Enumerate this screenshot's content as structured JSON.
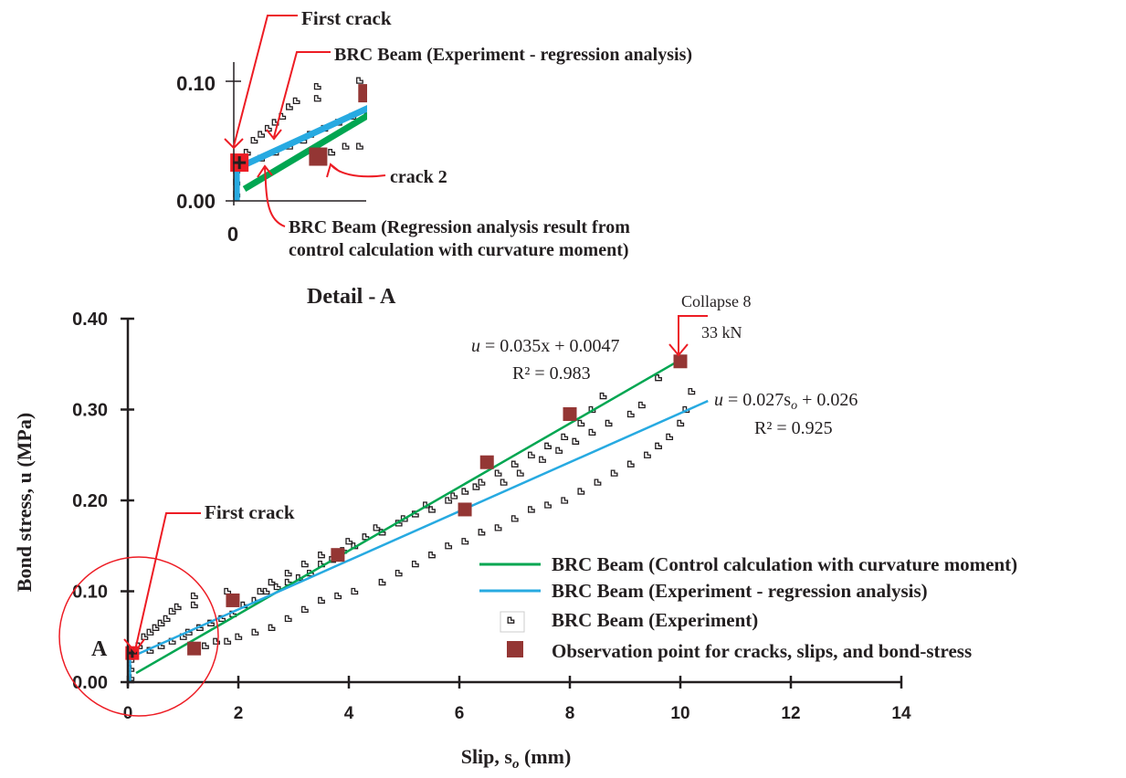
{
  "chart_data": {
    "type": "scatter",
    "xlabel": "Slip, s",
    "xlabel_sub": "o",
    "xlabel_unit": " (mm)",
    "ylabel": "Bond stress, u (MPa)",
    "xlim": [
      0,
      14
    ],
    "ylim": [
      0,
      0.4
    ],
    "xticks": [
      "0",
      "2",
      "4",
      "6",
      "8",
      "10",
      "12",
      "14"
    ],
    "yticks": [
      "0.00",
      "0.10",
      "0.20",
      "0.30",
      "0.40"
    ],
    "grid": false,
    "legend_placement": "bottom-right",
    "colors": {
      "control": "#00a651",
      "regression": "#27aae1",
      "experiment": "#231f20",
      "observation": "#943634",
      "annotation": "#ed1c24"
    },
    "series": [
      {
        "name": "BRC Beam (Control calculation with curvature moment)",
        "type": "line",
        "slope": 0.035,
        "intercept": 0.0047,
        "x_range": [
          0.15,
          10
        ]
      },
      {
        "name": "BRC Beam (Experiment - regression analysis)",
        "type": "line",
        "slope": 0.027,
        "intercept": 0.026,
        "x_range": [
          0.05,
          10.5
        ]
      },
      {
        "name": "BRC Beam (Experiment)",
        "type": "scatter",
        "points": [
          [
            0.05,
            0.005
          ],
          [
            0.05,
            0.015
          ],
          [
            0.05,
            0.025
          ],
          [
            0.1,
            0.03
          ],
          [
            0.2,
            0.04
          ],
          [
            0.3,
            0.05
          ],
          [
            0.4,
            0.055
          ],
          [
            0.5,
            0.06
          ],
          [
            0.6,
            0.065
          ],
          [
            0.7,
            0.07
          ],
          [
            0.8,
            0.078
          ],
          [
            0.9,
            0.083
          ],
          [
            1.2,
            0.085
          ],
          [
            1.2,
            0.095
          ],
          [
            1.8,
            0.1
          ],
          [
            0.4,
            0.035
          ],
          [
            0.6,
            0.04
          ],
          [
            0.8,
            0.045
          ],
          [
            1.0,
            0.05
          ],
          [
            1.1,
            0.055
          ],
          [
            1.3,
            0.06
          ],
          [
            1.5,
            0.065
          ],
          [
            1.7,
            0.07
          ],
          [
            1.9,
            0.075
          ],
          [
            2.1,
            0.085
          ],
          [
            2.3,
            0.09
          ],
          [
            2.5,
            0.1
          ],
          [
            2.7,
            0.105
          ],
          [
            2.9,
            0.11
          ],
          [
            3.1,
            0.115
          ],
          [
            3.3,
            0.12
          ],
          [
            3.5,
            0.13
          ],
          [
            3.7,
            0.135
          ],
          [
            3.9,
            0.145
          ],
          [
            4.1,
            0.15
          ],
          [
            4.3,
            0.16
          ],
          [
            4.6,
            0.165
          ],
          [
            4.9,
            0.175
          ],
          [
            5.2,
            0.185
          ],
          [
            5.5,
            0.19
          ],
          [
            5.8,
            0.2
          ],
          [
            6.1,
            0.21
          ],
          [
            6.4,
            0.22
          ],
          [
            6.7,
            0.23
          ],
          [
            7.0,
            0.24
          ],
          [
            7.3,
            0.25
          ],
          [
            7.6,
            0.26
          ],
          [
            7.9,
            0.27
          ],
          [
            8.2,
            0.285
          ],
          [
            8.4,
            0.3
          ],
          [
            8.6,
            0.315
          ],
          [
            2.4,
            0.1
          ],
          [
            2.6,
            0.11
          ],
          [
            2.9,
            0.12
          ],
          [
            3.2,
            0.13
          ],
          [
            3.5,
            0.14
          ],
          [
            4.0,
            0.155
          ],
          [
            4.5,
            0.17
          ],
          [
            5.0,
            0.18
          ],
          [
            5.4,
            0.195
          ],
          [
            5.9,
            0.205
          ],
          [
            6.3,
            0.215
          ],
          [
            6.8,
            0.22
          ],
          [
            7.1,
            0.23
          ],
          [
            7.5,
            0.245
          ],
          [
            7.8,
            0.255
          ],
          [
            8.1,
            0.265
          ],
          [
            8.4,
            0.275
          ],
          [
            8.7,
            0.285
          ],
          [
            9.1,
            0.295
          ],
          [
            9.3,
            0.305
          ],
          [
            9.6,
            0.335
          ],
          [
            1.4,
            0.04
          ],
          [
            1.6,
            0.045
          ],
          [
            1.8,
            0.045
          ],
          [
            2.0,
            0.05
          ],
          [
            2.3,
            0.055
          ],
          [
            2.6,
            0.06
          ],
          [
            2.9,
            0.07
          ],
          [
            3.2,
            0.08
          ],
          [
            3.5,
            0.09
          ],
          [
            3.8,
            0.095
          ],
          [
            4.1,
            0.1
          ],
          [
            4.6,
            0.11
          ],
          [
            4.9,
            0.12
          ],
          [
            5.2,
            0.13
          ],
          [
            5.5,
            0.14
          ],
          [
            5.8,
            0.15
          ],
          [
            6.1,
            0.155
          ],
          [
            6.4,
            0.165
          ],
          [
            6.7,
            0.17
          ],
          [
            7.0,
            0.18
          ],
          [
            7.3,
            0.19
          ],
          [
            7.6,
            0.195
          ],
          [
            7.9,
            0.2
          ],
          [
            8.2,
            0.21
          ],
          [
            8.5,
            0.22
          ],
          [
            8.8,
            0.23
          ],
          [
            9.1,
            0.24
          ],
          [
            9.4,
            0.25
          ],
          [
            9.6,
            0.26
          ],
          [
            9.8,
            0.27
          ],
          [
            10.0,
            0.285
          ],
          [
            10.1,
            0.3
          ],
          [
            10.2,
            0.32
          ]
        ]
      },
      {
        "name": "Observation point for cracks, slips, and bond-stress",
        "type": "scatter",
        "points": [
          [
            0.08,
            0.032
          ],
          [
            1.2,
            0.037
          ],
          [
            1.9,
            0.09
          ],
          [
            3.8,
            0.14
          ],
          [
            6.1,
            0.19
          ],
          [
            6.5,
            0.242
          ],
          [
            8.0,
            0.295
          ],
          [
            10.0,
            0.353
          ]
        ]
      }
    ],
    "annotations": {
      "first_crack": "First crack",
      "collapse": "Collapse 8",
      "collapse_load": "33 kN",
      "eq1_u": "u",
      "eq1": " = 0.035x + 0.0047",
      "r2_1": "R² = 0.983",
      "eq2_u": "u",
      "eq2_a": " = 0.027s",
      "eq2_sub": "o",
      "eq2_b": " + 0.026",
      "r2_2": "R² = 0.925",
      "circle_label": "A"
    },
    "detail": {
      "title": "Detail  - A",
      "xticks": [
        "0"
      ],
      "yticks": [
        "0.00",
        "0.10"
      ],
      "xlim": [
        0,
        1.87
      ],
      "ylim": [
        0,
        0.1
      ],
      "first_crack": "First crack",
      "regression_label": "BRC Beam (Experiment - regression analysis)",
      "crack2": "crack 2",
      "control_label_1": "BRC Beam (Regression analysis result from",
      "control_label_2": "control calculation with curvature moment)"
    }
  }
}
